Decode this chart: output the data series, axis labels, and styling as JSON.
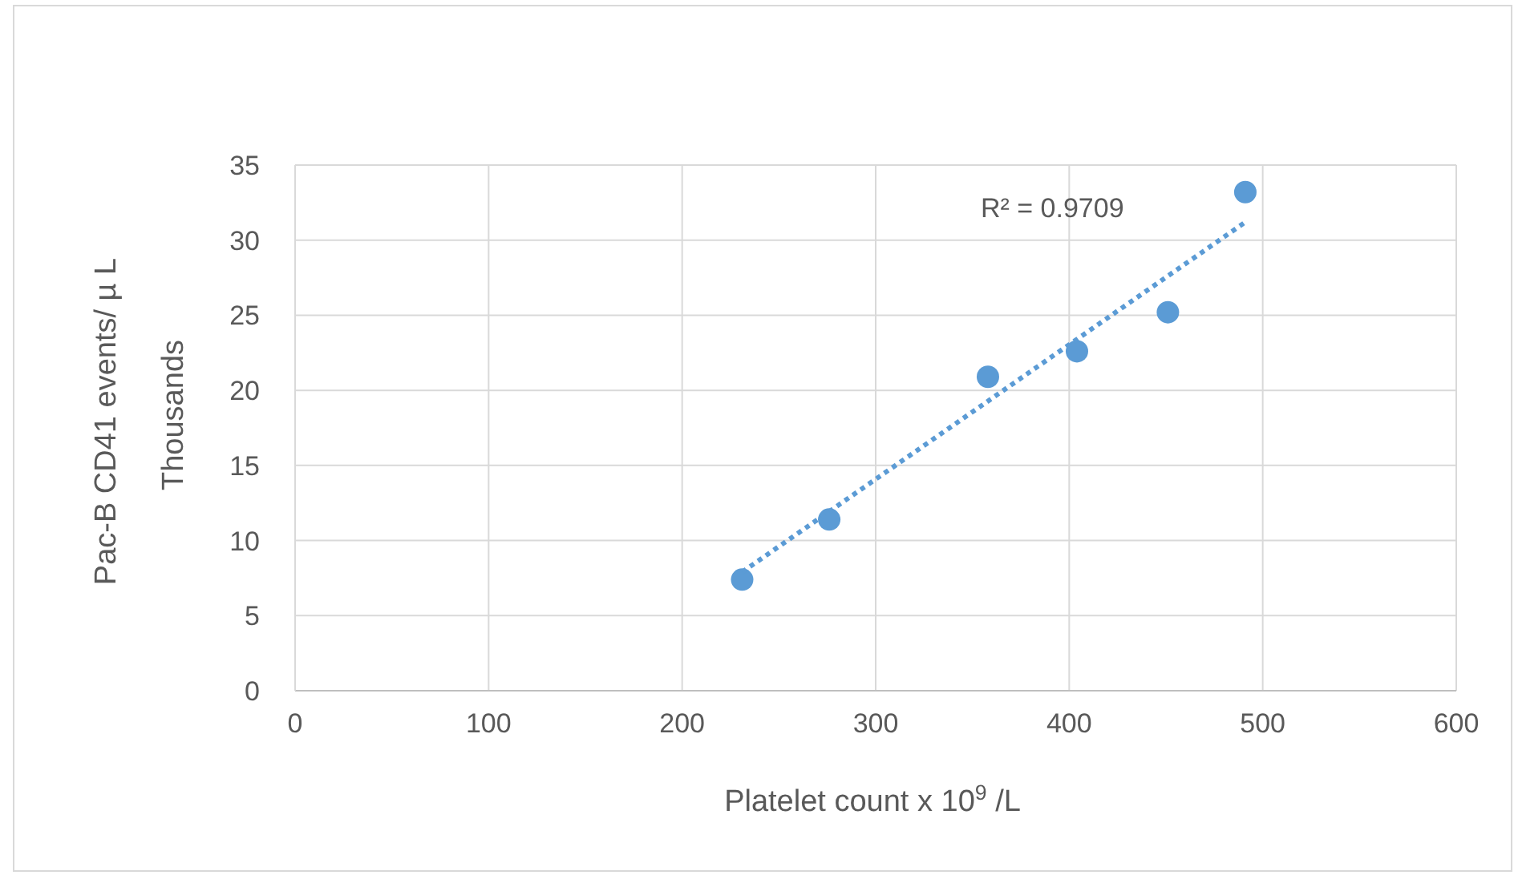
{
  "chart_data": {
    "type": "scatter",
    "xlabel": "Platelet count x 10$^{9}$ /L",
    "ylabel": "Pac-B CD41 events/ µ L",
    "xlim": [
      0,
      600
    ],
    "xticks": [
      0,
      100,
      200,
      300,
      400,
      500,
      600
    ],
    "ylim": [
      0,
      35
    ],
    "yticks": [
      0,
      5,
      10,
      15,
      20,
      25,
      30,
      35
    ],
    "grid": true,
    "marker": "circle",
    "series": [
      {
        "color": "#5b9bd5",
        "x": [
          231,
          276,
          358,
          404,
          451,
          491
        ],
        "values": [
          7.4,
          11.4,
          20.9,
          22.6,
          25.2,
          33.2
        ]
      },
      {
        "type": "line",
        "color": "#5b9bd5",
        "line_style": "dotted",
        "marker": "none",
        "x": [
          231,
          491
        ],
        "values": [
          7.9,
          31.2
        ]
      }
    ],
    "annotations": [
      "R² = 0.9709",
      "Thousands"
    ]
  }
}
